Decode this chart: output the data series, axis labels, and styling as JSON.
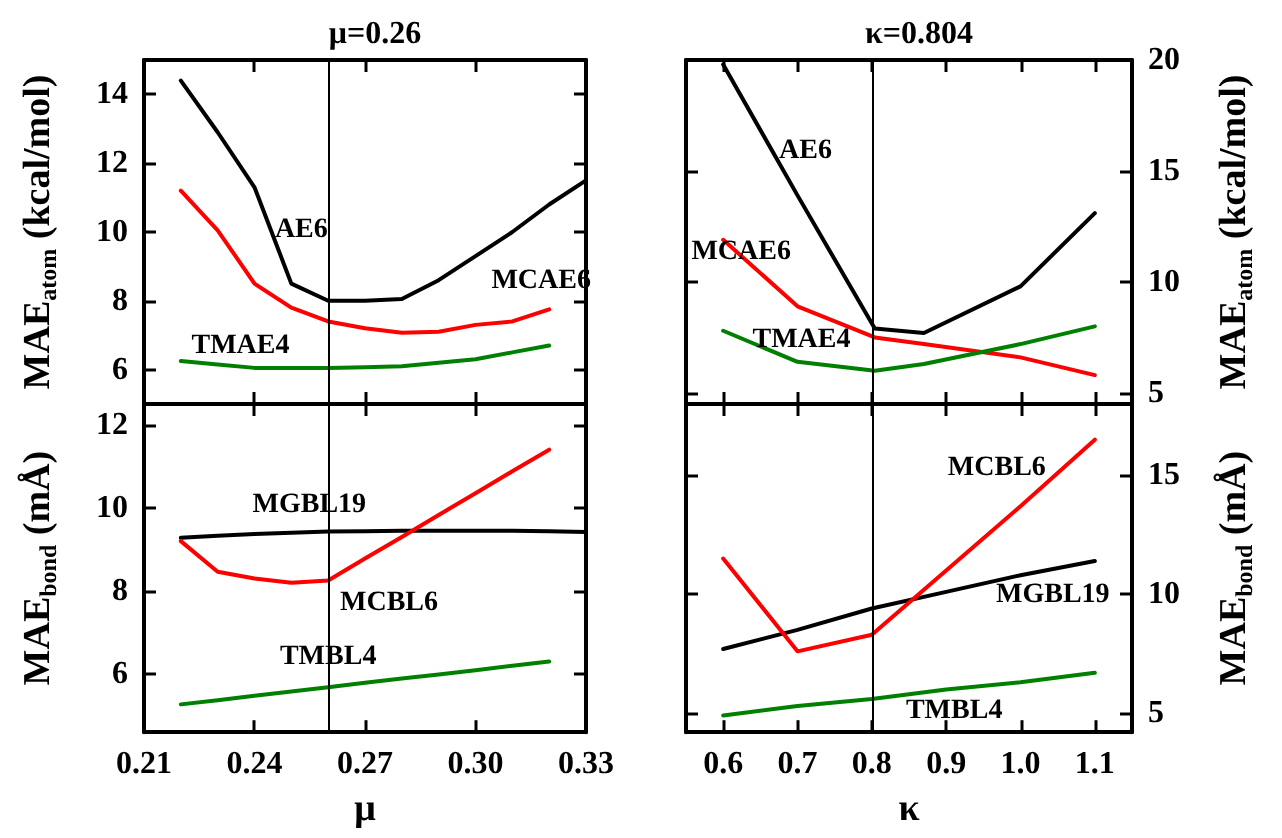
{
  "chart_data": [
    {
      "type": "line",
      "title": "μ=0.26",
      "ylabel": "MAE$_{atom}$ (kcal/mol)",
      "x": [
        0.22,
        0.23,
        0.24,
        0.25,
        0.26,
        0.27,
        0.28,
        0.29,
        0.3,
        0.31,
        0.32,
        0.33
      ],
      "xlim": [
        0.21,
        0.33
      ],
      "xticks": [
        0.21,
        0.24,
        0.27,
        0.3,
        0.33
      ],
      "ylim": [
        5,
        15
      ],
      "yticks": [
        6,
        8,
        10,
        12,
        14
      ],
      "tick_labels": "y",
      "grid": false,
      "legend": false,
      "marker": "none",
      "line_style": "solid",
      "series": [
        {
          "name": "AE6",
          "color": "#000000",
          "values": [
            14.4,
            12.9,
            11.3,
            8.5,
            8.0,
            8.0,
            8.05,
            8.6,
            9.3,
            10.0,
            10.8,
            11.5
          ]
        },
        {
          "name": "MCAE6",
          "color": "#ff0000",
          "values": [
            11.2,
            10.05,
            8.5,
            7.8,
            7.4,
            7.2,
            7.07,
            7.1,
            7.3,
            7.4,
            7.75,
            null
          ]
        },
        {
          "name": "TMAE4",
          "color": "#008000",
          "values": [
            6.25,
            6.15,
            6.05,
            6.05,
            6.05,
            6.07,
            6.1,
            6.2,
            6.3,
            6.5,
            6.7,
            null
          ]
        }
      ],
      "ref_lines": [
        {
          "axis": "x",
          "value": 0.26,
          "color": "#000000"
        }
      ]
    },
    {
      "type": "line",
      "title": "κ=0.804",
      "y2label": "MAE$_{atom}$ (kcal/mol)",
      "x": [
        0.6,
        0.7,
        0.804,
        0.87,
        1.0,
        1.1
      ],
      "xlim": [
        0.55,
        1.15
      ],
      "xticks": [
        0.6,
        0.7,
        0.8,
        0.9,
        1,
        1.1
      ],
      "y2lim": [
        4.5,
        20
      ],
      "y2ticks": [
        5,
        10,
        15,
        20
      ],
      "tick_labels": "y",
      "grid": false,
      "legend": false,
      "marker": "none",
      "line_style": "solid",
      "series": [
        {
          "name": "AE6",
          "color": "#000000",
          "axis": "y2",
          "values": [
            19.8,
            13.9,
            7.9,
            7.7,
            9.8,
            13.1
          ]
        },
        {
          "name": "MCAE6",
          "color": "#ff0000",
          "axis": "y2",
          "values": [
            11.9,
            8.9,
            7.5,
            7.2,
            6.6,
            5.8
          ]
        },
        {
          "name": "TMAE4",
          "color": "#008000",
          "axis": "y2",
          "values": [
            7.8,
            6.4,
            6.0,
            6.3,
            7.2,
            8.0
          ]
        }
      ],
      "ref_lines": [
        {
          "axis": "x",
          "value": 0.804,
          "color": "#000000"
        }
      ]
    },
    {
      "type": "line",
      "xlabel": "μ",
      "ylabel": "MAE$_{bond}$ (mÅ)",
      "x": [
        0.22,
        0.23,
        0.24,
        0.25,
        0.26,
        0.27,
        0.28,
        0.29,
        0.3,
        0.31,
        0.32,
        0.33
      ],
      "xlim": [
        0.21,
        0.33
      ],
      "xticks": [
        0.21,
        0.24,
        0.27,
        {
          "value": 0.3,
          "label": "0.30"
        },
        0.33
      ],
      "ylim": [
        4.6,
        12.5
      ],
      "yticks": [
        6,
        8,
        10,
        12
      ],
      "grid": false,
      "legend": false,
      "marker": "none",
      "line_style": "solid",
      "series": [
        {
          "name": "MGBL19",
          "color": "#000000",
          "values": [
            9.28,
            9.33,
            9.37,
            9.4,
            9.43,
            9.44,
            9.45,
            9.45,
            9.45,
            9.45,
            9.44,
            9.42
          ]
        },
        {
          "name": "MCBL6",
          "color": "#ff0000",
          "values": [
            9.2,
            8.46,
            8.3,
            8.2,
            8.25,
            8.78,
            9.3,
            9.83,
            10.35,
            10.88,
            11.4,
            null
          ]
        },
        {
          "name": "TMBL4",
          "color": "#008000",
          "values": [
            5.27,
            5.37,
            5.48,
            5.58,
            5.68,
            5.79,
            5.89,
            5.99,
            6.09,
            6.2,
            6.3,
            null
          ]
        }
      ],
      "ref_lines": [
        {
          "axis": "x",
          "value": 0.26,
          "color": "#000000"
        }
      ]
    },
    {
      "type": "line",
      "xlabel": "κ",
      "y2label": "MAE$_{bond}$ (mÅ)",
      "x": [
        0.6,
        0.7,
        0.8,
        0.9,
        1.0,
        1.1
      ],
      "xlim": [
        0.55,
        1.15
      ],
      "xticks": [
        0.6,
        0.7,
        0.8,
        0.9,
        {
          "value": 1,
          "label": "1.0"
        },
        1.1
      ],
      "y2lim": [
        4.2,
        18
      ],
      "y2ticks": [
        5,
        10,
        15
      ],
      "grid": false,
      "legend": false,
      "marker": "none",
      "line_style": "solid",
      "series": [
        {
          "name": "MGBL19",
          "color": "#000000",
          "axis": "y2",
          "values": [
            7.7,
            8.5,
            9.4,
            10.1,
            10.8,
            11.4
          ]
        },
        {
          "name": "MCBL6",
          "color": "#ff0000",
          "axis": "y2",
          "values": [
            11.5,
            7.6,
            8.3,
            11.0,
            13.7,
            16.5
          ]
        },
        {
          "name": "TMBL4",
          "color": "#008000",
          "axis": "y2",
          "values": [
            4.9,
            5.3,
            5.6,
            6.0,
            6.3,
            6.7
          ]
        }
      ],
      "ref_lines": [
        {
          "axis": "x",
          "value": 0.804,
          "color": "#000000"
        }
      ]
    }
  ]
}
